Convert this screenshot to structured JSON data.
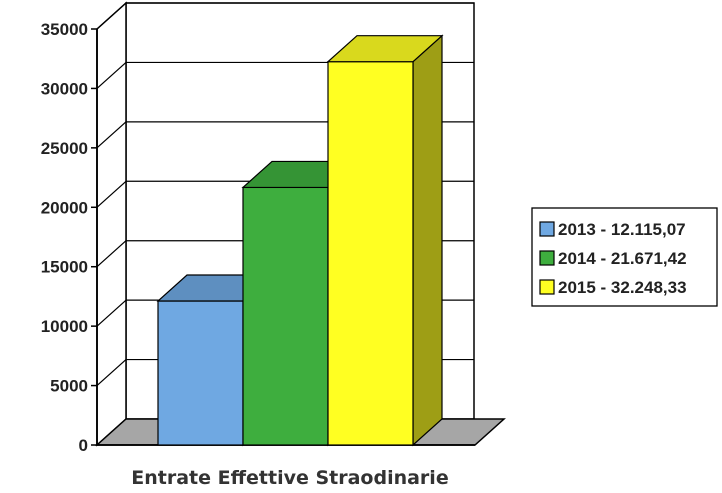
{
  "chart_data": {
    "type": "bar",
    "categories": [
      "2013",
      "2014",
      "2015"
    ],
    "values": [
      12115.07,
      21671.42,
      32248.33
    ],
    "legend": [
      "2013 - 12.115,07",
      "2014 - 21.671,42",
      "2015 - 32.248,33"
    ],
    "colors": [
      "#6fa8e2",
      "#3eae3e",
      "#ffff22"
    ],
    "xlabel": "Entrate Effettive Straodinarie",
    "ylabel": "",
    "ylim": [
      0,
      35000
    ],
    "yticks": [
      "0",
      "5000",
      "10000",
      "15000",
      "20000",
      "25000",
      "30000",
      "35000"
    ],
    "grid": true,
    "three_d": true,
    "legend_position": "right"
  }
}
